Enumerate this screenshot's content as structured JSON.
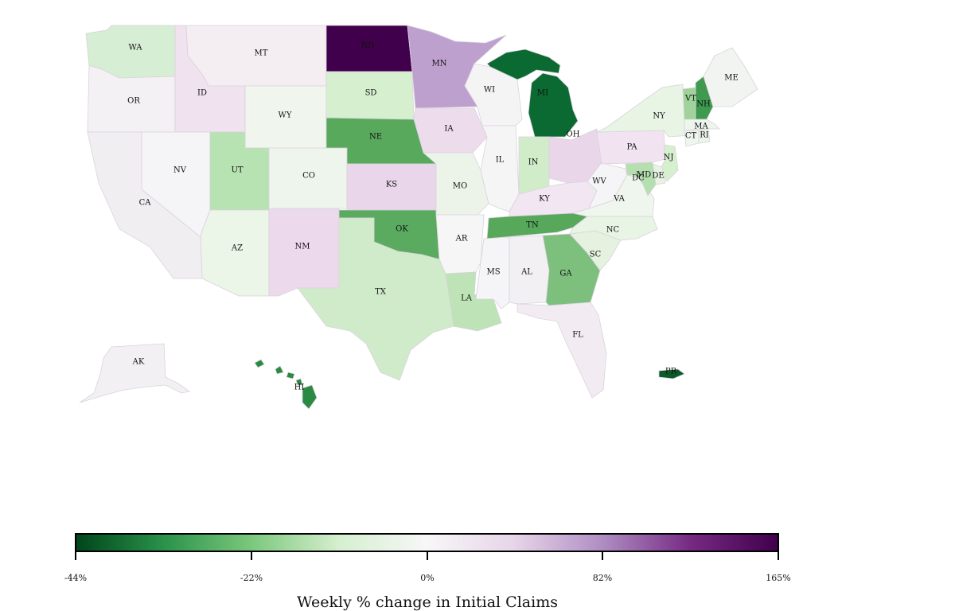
{
  "legend": {
    "title": "Weekly % change in Initial Claims",
    "tick_labels": [
      "-44%",
      "-22%",
      "0%",
      "82%",
      "165%"
    ],
    "stops": [
      "#00441b",
      "#2a924a",
      "#7bc87c",
      "#d5efcf",
      "#f7f7f7",
      "#e7d4e8",
      "#af8dc3",
      "#762a83",
      "#40004b"
    ]
  },
  "states": [
    {
      "abbr": "WA",
      "value": -12,
      "color": "#d6eed3"
    },
    {
      "abbr": "OR",
      "value": 5,
      "color": "#f3f1f4"
    },
    {
      "abbr": "CA",
      "value": 8,
      "color": "#f1eef2"
    },
    {
      "abbr": "ID",
      "value": 20,
      "color": "#f0e2ef"
    },
    {
      "abbr": "MT",
      "value": 10,
      "color": "#f4eef3"
    },
    {
      "abbr": "WY",
      "value": -3,
      "color": "#f0f6ee"
    },
    {
      "abbr": "NV",
      "value": 2,
      "color": "#f5f4f6"
    },
    {
      "abbr": "UT",
      "value": -20,
      "color": "#b7e2b1"
    },
    {
      "abbr": "CO",
      "value": -4,
      "color": "#eef5ec"
    },
    {
      "abbr": "AZ",
      "value": -6,
      "color": "#ebf5e8"
    },
    {
      "abbr": "NM",
      "value": 35,
      "color": "#ecd9ec"
    },
    {
      "abbr": "ND",
      "value": 165,
      "color": "#40004b"
    },
    {
      "abbr": "SD",
      "value": -12,
      "color": "#d5efcf"
    },
    {
      "abbr": "NE",
      "value": -30,
      "color": "#58a95b"
    },
    {
      "abbr": "KS",
      "value": 38,
      "color": "#ead6ea"
    },
    {
      "abbr": "OK",
      "value": -32,
      "color": "#5aaa5f"
    },
    {
      "abbr": "TX",
      "value": -14,
      "color": "#d0ebc9"
    },
    {
      "abbr": "MN",
      "value": 80,
      "color": "#bea0cf"
    },
    {
      "abbr": "IA",
      "value": 30,
      "color": "#ecdcec"
    },
    {
      "abbr": "MO",
      "value": -5,
      "color": "#ecf4ea"
    },
    {
      "abbr": "AR",
      "value": 1,
      "color": "#f6f6f6"
    },
    {
      "abbr": "LA",
      "value": -20,
      "color": "#bde3b6"
    },
    {
      "abbr": "WI",
      "value": 2,
      "color": "#f5f4f5"
    },
    {
      "abbr": "IL",
      "value": 1,
      "color": "#f6f5f6"
    },
    {
      "abbr": "MI",
      "value": -44,
      "color": "#0b6a31"
    },
    {
      "abbr": "IN",
      "value": -14,
      "color": "#d0ecc9"
    },
    {
      "abbr": "OH",
      "value": 32,
      "color": "#e9d6e9"
    },
    {
      "abbr": "KY",
      "value": 15,
      "color": "#f1e6f1"
    },
    {
      "abbr": "TN",
      "value": -32,
      "color": "#57a85b"
    },
    {
      "abbr": "MS",
      "value": 2,
      "color": "#f5f4f6"
    },
    {
      "abbr": "AL",
      "value": 5,
      "color": "#f3f0f4"
    },
    {
      "abbr": "GA",
      "value": -26,
      "color": "#7dbf7c"
    },
    {
      "abbr": "FL",
      "value": 10,
      "color": "#f2ecf2"
    },
    {
      "abbr": "SC",
      "value": -8,
      "color": "#e4f2df"
    },
    {
      "abbr": "NC",
      "value": -6,
      "color": "#e8f4e4"
    },
    {
      "abbr": "VA",
      "value": -3,
      "color": "#eff6ed"
    },
    {
      "abbr": "WV",
      "value": 2,
      "color": "#f5f4f6"
    },
    {
      "abbr": "PA",
      "value": 15,
      "color": "#f1e4f0"
    },
    {
      "abbr": "NY",
      "value": -6,
      "color": "#e8f4e4"
    },
    {
      "abbr": "VT",
      "value": -22,
      "color": "#9fd39a"
    },
    {
      "abbr": "NH",
      "value": -38,
      "color": "#3f9a4f"
    },
    {
      "abbr": "ME",
      "value": -2,
      "color": "#f1f4f0"
    },
    {
      "abbr": "MA",
      "value": -4,
      "color": "#eef5ec"
    },
    {
      "abbr": "RI",
      "value": -6,
      "color": "#ebf5e8"
    },
    {
      "abbr": "CT",
      "value": -3,
      "color": "#eff6ed"
    },
    {
      "abbr": "NJ",
      "value": -12,
      "color": "#d5efcf"
    },
    {
      "abbr": "DE",
      "value": -6,
      "color": "#e6f3e2"
    },
    {
      "abbr": "MD",
      "value": -18,
      "color": "#b4dfae"
    },
    {
      "abbr": "DC",
      "value": -20,
      "color": "#9fd39a"
    },
    {
      "abbr": "AK",
      "value": 5,
      "color": "#f3f0f4"
    },
    {
      "abbr": "HI",
      "value": -38,
      "color": "#2a8a43"
    },
    {
      "abbr": "PR",
      "value": -44,
      "color": "#0b5a2b"
    }
  ]
}
